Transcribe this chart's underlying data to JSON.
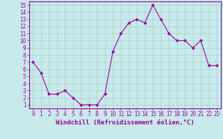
{
  "x": [
    0,
    1,
    2,
    3,
    4,
    5,
    6,
    7,
    8,
    9,
    10,
    11,
    12,
    13,
    14,
    15,
    16,
    17,
    18,
    19,
    20,
    21,
    22,
    23
  ],
  "y": [
    7,
    5.5,
    2.5,
    2.5,
    3,
    2,
    1,
    1,
    1,
    2.5,
    8.5,
    11,
    12.5,
    13,
    12.5,
    15,
    13,
    11,
    10,
    10,
    9,
    10,
    6.5,
    6.5
  ],
  "line_color": "#990099",
  "marker": "D",
  "marker_size": 2,
  "bg_color": "#c8eaea",
  "grid_color": "#aacccc",
  "xlabel": "Windchill (Refroidissement éolien,°C)",
  "xlabel_color": "#990099",
  "tick_color": "#990099",
  "spine_color": "#990099",
  "ylim": [
    0.5,
    15.5
  ],
  "xlim": [
    -0.5,
    23.5
  ],
  "yticks": [
    1,
    2,
    3,
    4,
    5,
    6,
    7,
    8,
    9,
    10,
    11,
    12,
    13,
    14,
    15
  ],
  "xticks": [
    0,
    1,
    2,
    3,
    4,
    5,
    6,
    7,
    8,
    9,
    10,
    11,
    12,
    13,
    14,
    15,
    16,
    17,
    18,
    19,
    20,
    21,
    22,
    23
  ],
  "tick_fontsize": 5.5,
  "xlabel_fontsize": 6.5
}
